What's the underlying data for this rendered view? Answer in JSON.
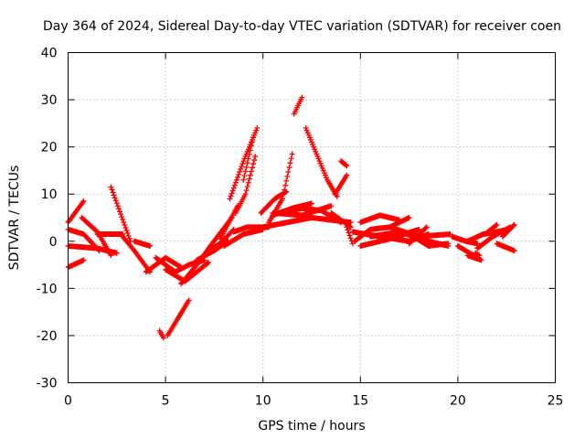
{
  "chart_data": {
    "type": "scatter",
    "title": "Day 364 of 2024, Sidereal Day-to-day VTEC variation (SDTVAR) for receiver coen",
    "xlabel": "GPS time / hours",
    "ylabel": "SDTVAR / TECUs",
    "xlim": [
      0,
      25
    ],
    "ylim": [
      -30,
      40
    ],
    "xticks": [
      0,
      5,
      10,
      15,
      20,
      25
    ],
    "yticks": [
      -30,
      -20,
      -10,
      0,
      10,
      20,
      30,
      40
    ],
    "x_tick_labels": [
      "0",
      "5",
      "10",
      "15",
      "20",
      "25"
    ],
    "y_tick_labels": [
      "-30",
      "-20",
      "-10",
      "0",
      "10",
      "20",
      "30",
      "40"
    ],
    "grid": true,
    "marker": "+",
    "color": "#ff0000",
    "series": [
      {
        "name": "s1",
        "x": [
          0.0,
          0.8
        ],
        "y": [
          4,
          8.5
        ]
      },
      {
        "name": "s2",
        "x": [
          0.0,
          0.8
        ],
        "y": [
          -5.5,
          -4
        ]
      },
      {
        "name": "s3",
        "x": [
          0.0,
          1.5,
          2.5
        ],
        "y": [
          -1,
          -1.5,
          -2.5
        ]
      },
      {
        "name": "s4",
        "x": [
          0.0,
          0.8,
          1.6
        ],
        "y": [
          2.5,
          1.5,
          -2
        ]
      },
      {
        "name": "s5",
        "x": [
          0.7,
          1.5,
          2.2
        ],
        "y": [
          5,
          2,
          -3
        ]
      },
      {
        "name": "s6",
        "x": [
          1.5,
          2.8
        ],
        "y": [
          1.5,
          1.5
        ]
      },
      {
        "name": "s7",
        "x": [
          2.2,
          3.2
        ],
        "y": [
          11.5,
          0
        ]
      },
      {
        "name": "s8",
        "x": [
          2.8,
          3.4,
          4.2
        ],
        "y": [
          1,
          -2,
          -6.5
        ]
      },
      {
        "name": "s9",
        "x": [
          3.4,
          4.2
        ],
        "y": [
          0,
          -1
        ]
      },
      {
        "name": "s10",
        "x": [
          4.0,
          5.0,
          5.8
        ],
        "y": [
          -6.5,
          -3.5,
          -5.5
        ]
      },
      {
        "name": "s11",
        "x": [
          4.5,
          5.5,
          6.2,
          7.0
        ],
        "y": [
          -3.5,
          -6.5,
          -5,
          -4
        ]
      },
      {
        "name": "s12",
        "x": [
          4.7,
          4.9
        ],
        "y": [
          -19,
          -20.5
        ]
      },
      {
        "name": "s13",
        "x": [
          5.1,
          6.2
        ],
        "y": [
          -20,
          -12.5
        ]
      },
      {
        "name": "s14",
        "x": [
          5.0,
          6.0,
          7.2
        ],
        "y": [
          -6,
          -8.5,
          -4.5
        ]
      },
      {
        "name": "s15",
        "x": [
          5.8,
          6.6,
          7.3,
          8.4
        ],
        "y": [
          -9,
          -5,
          -1,
          5
        ]
      },
      {
        "name": "s16",
        "x": [
          6.6,
          7.5,
          8.2
        ],
        "y": [
          -4,
          -2,
          0
        ]
      },
      {
        "name": "s17",
        "x": [
          7.2,
          7.8,
          8.5
        ],
        "y": [
          -2,
          -0.5,
          2.5
        ]
      },
      {
        "name": "s18",
        "x": [
          7.8,
          8.7
        ],
        "y": [
          0.5,
          7.5
        ]
      },
      {
        "name": "s19",
        "x": [
          8.0,
          9.0,
          10.0
        ],
        "y": [
          -1,
          1.5,
          2.5
        ]
      },
      {
        "name": "s20",
        "x": [
          8.5,
          9.2,
          10.3
        ],
        "y": [
          2,
          3,
          3
        ]
      },
      {
        "name": "s21",
        "x": [
          8.3,
          9.0,
          9.7
        ],
        "y": [
          9,
          17,
          24
        ]
      },
      {
        "name": "s22",
        "x": [
          8.6,
          9.1,
          9.6
        ],
        "y": [
          6,
          10,
          18
        ]
      },
      {
        "name": "s23",
        "x": [
          9.0,
          9.5
        ],
        "y": [
          13,
          22
        ]
      },
      {
        "name": "s24",
        "x": [
          9.9,
          10.6,
          11.2
        ],
        "y": [
          6,
          9,
          10.5
        ]
      },
      {
        "name": "s25",
        "x": [
          10.3,
          11.0,
          11.5
        ],
        "y": [
          4,
          9,
          18.5
        ]
      },
      {
        "name": "s26",
        "x": [
          10.0,
          12.5,
          14.5
        ],
        "y": [
          3,
          5,
          4
        ]
      },
      {
        "name": "s27",
        "x": [
          10.5,
          12.0,
          13.5
        ],
        "y": [
          6,
          5.5,
          7.5
        ]
      },
      {
        "name": "s28",
        "x": [
          10.5,
          11.5,
          12.5
        ],
        "y": [
          5.5,
          7,
          8
        ]
      },
      {
        "name": "s29",
        "x": [
          11.0,
          12.0,
          13.0,
          14.0
        ],
        "y": [
          6,
          7,
          6.5,
          4
        ]
      },
      {
        "name": "s30",
        "x": [
          11.6,
          12.0
        ],
        "y": [
          27,
          30.5
        ]
      },
      {
        "name": "s31",
        "x": [
          12.2,
          13.3,
          13.8
        ],
        "y": [
          24,
          13,
          9.5
        ]
      },
      {
        "name": "s32",
        "x": [
          13.7,
          14.3
        ],
        "y": [
          10,
          14
        ]
      },
      {
        "name": "s33",
        "x": [
          14.0,
          14.3
        ],
        "y": [
          17,
          16
        ]
      },
      {
        "name": "s34",
        "x": [
          13.5,
          14.5
        ],
        "y": [
          6,
          3
        ]
      },
      {
        "name": "s35",
        "x": [
          14.3,
          14.6
        ],
        "y": [
          3,
          -0.5
        ]
      },
      {
        "name": "s36",
        "x": [
          14.7,
          15.5,
          16.5,
          17.5
        ],
        "y": [
          0,
          2.5,
          3,
          5
        ]
      },
      {
        "name": "s37",
        "x": [
          15.0,
          16.0,
          17.0
        ],
        "y": [
          4,
          5.5,
          4.5
        ]
      },
      {
        "name": "s38",
        "x": [
          14.6,
          16.0,
          17.5,
          18.5
        ],
        "y": [
          2,
          1,
          0,
          1.5
        ]
      },
      {
        "name": "s39",
        "x": [
          15.0,
          16.5,
          18.0
        ],
        "y": [
          -1,
          0.5,
          2.5
        ]
      },
      {
        "name": "s40",
        "x": [
          15.5,
          17.0,
          18.5,
          19.5
        ],
        "y": [
          1,
          2,
          0,
          -1
        ]
      },
      {
        "name": "s41",
        "x": [
          16.5,
          18.0,
          19.6
        ],
        "y": [
          3,
          1,
          1.5
        ]
      },
      {
        "name": "s42",
        "x": [
          17.5,
          18.5,
          19.5
        ],
        "y": [
          1.5,
          -1,
          -0.5
        ]
      },
      {
        "name": "s43",
        "x": [
          17.5,
          18.4
        ],
        "y": [
          -0.5,
          3
        ]
      },
      {
        "name": "s44",
        "x": [
          19.7,
          20.4,
          21.0
        ],
        "y": [
          1,
          0,
          -0.5
        ]
      },
      {
        "name": "s45",
        "x": [
          20.0,
          20.8
        ],
        "y": [
          -1,
          -3
        ]
      },
      {
        "name": "s46",
        "x": [
          20.5,
          21.2
        ],
        "y": [
          -3,
          -4
        ]
      },
      {
        "name": "s47",
        "x": [
          20.5,
          21.3,
          22.0,
          22.6
        ],
        "y": [
          0,
          1.5,
          2,
          2.5
        ]
      },
      {
        "name": "s48",
        "x": [
          21.0,
          21.8,
          22.7
        ],
        "y": [
          -1.5,
          1,
          3
        ]
      },
      {
        "name": "s49",
        "x": [
          21.4,
          22.0
        ],
        "y": [
          1.5,
          3.5
        ]
      },
      {
        "name": "s50",
        "x": [
          22.0,
          22.9
        ],
        "y": [
          -0.5,
          -2
        ]
      },
      {
        "name": "s51",
        "x": [
          22.3,
          22.9
        ],
        "y": [
          1,
          3.5
        ]
      },
      {
        "name": "s52",
        "x": [
          20.9,
          21.1
        ],
        "y": [
          -2.5,
          -3
        ]
      }
    ]
  }
}
